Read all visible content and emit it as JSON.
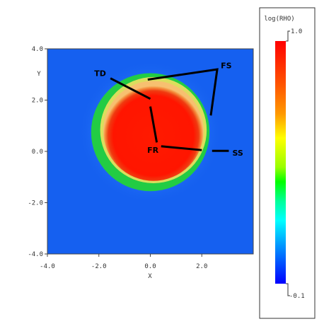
{
  "chart_data": {
    "type": "heatmap",
    "xlabel": "X",
    "ylabel": "Y",
    "xlim": [
      -4.0,
      4.0
    ],
    "ylim": [
      -4.0,
      4.0
    ],
    "x_ticks": [
      "-4.0",
      "-2.0",
      "0.0",
      "2.0"
    ],
    "y_ticks": [
      "-4.0",
      "-2.0",
      "0.0",
      "2.0",
      "4.0"
    ],
    "x_tick_values": [
      -4.0,
      -2.0,
      0.0,
      2.0
    ],
    "y_tick_values": [
      -4.0,
      -2.0,
      0.0,
      2.0,
      4.0
    ],
    "colorbar": {
      "title": "log(RHO)",
      "max_label": "1.0",
      "min_label": "-0.1",
      "max": 1.0,
      "min": -0.1,
      "colors": [
        "#ff0000",
        "#ff4400",
        "#ff8800",
        "#ffcc00",
        "#ffff00",
        "#aaff00",
        "#00ff00",
        "#00ff88",
        "#00ffff",
        "#00bbff",
        "#0077ff",
        "#0000ff"
      ]
    },
    "background_color": "#1560f0",
    "features": {
      "ambient_value": -0.1,
      "halo_outer_radius": 2.8,
      "shell_outer_radius": 2.3,
      "shell_center": [
        0.0,
        0.8
      ],
      "shell_value": 0.55,
      "core_radius": 1.95,
      "core_center": [
        0.12,
        0.85
      ],
      "core_value": 1.0
    },
    "annotations": [
      {
        "label": "TD",
        "text_at": [
          -1.95,
          3.05
        ],
        "line": [
          [
            -1.55,
            2.85
          ],
          [
            0.0,
            2.05
          ]
        ]
      },
      {
        "label": "FS",
        "text_at": [
          2.95,
          3.35
        ],
        "line": [
          [
            -0.1,
            2.8
          ],
          [
            2.6,
            3.2
          ],
          [
            2.35,
            1.4
          ]
        ]
      },
      {
        "label": "FR",
        "text_at": [
          0.1,
          0.05
        ],
        "line": [
          [
            0.25,
            0.35
          ],
          [
            0.0,
            1.75
          ],
          [
            0.42,
            0.2
          ],
          [
            2.0,
            0.05
          ]
        ]
      },
      {
        "label": "SS",
        "text_at": [
          3.4,
          -0.05
        ],
        "line": [
          [
            2.4,
            0.02
          ],
          [
            3.05,
            0.02
          ]
        ]
      }
    ]
  }
}
